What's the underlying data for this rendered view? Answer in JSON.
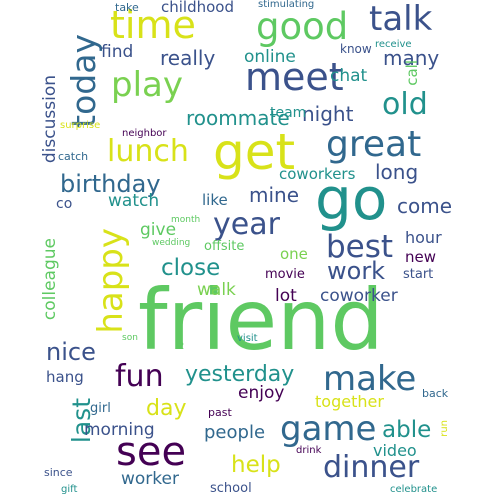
{
  "words": [
    {
      "text": "friend",
      "color": "#5ec962"
    },
    {
      "text": "go",
      "color": "#21918c"
    },
    {
      "text": "get",
      "color": "#d8e219"
    },
    {
      "text": "meet",
      "color": "#3b528b"
    },
    {
      "text": "great",
      "color": "#31688e"
    },
    {
      "text": "time",
      "color": "#d8e219"
    },
    {
      "text": "see",
      "color": "#440154"
    },
    {
      "text": "good",
      "color": "#5ec962"
    },
    {
      "text": "happy",
      "color": "#d8e219"
    },
    {
      "text": "talk",
      "color": "#3b528b"
    },
    {
      "text": "make",
      "color": "#31688e"
    },
    {
      "text": "game",
      "color": "#31688e"
    },
    {
      "text": "play",
      "color": "#7ad151"
    },
    {
      "text": "today",
      "color": "#31688e"
    },
    {
      "text": "lunch",
      "color": "#d8e219"
    },
    {
      "text": "best",
      "color": "#3b528b"
    },
    {
      "text": "old",
      "color": "#21918c"
    },
    {
      "text": "dinner",
      "color": "#3b528b"
    },
    {
      "text": "fun",
      "color": "#440154"
    },
    {
      "text": "year",
      "color": "#3b528b"
    },
    {
      "text": "birthday",
      "color": "#31688e"
    },
    {
      "text": "work",
      "color": "#3b528b"
    },
    {
      "text": "nice",
      "color": "#3b528b"
    },
    {
      "text": "last",
      "color": "#21918c"
    },
    {
      "text": "close",
      "color": "#21918c"
    },
    {
      "text": "help",
      "color": "#d8e219"
    },
    {
      "text": "day",
      "color": "#d8e219"
    },
    {
      "text": "able",
      "color": "#21918c"
    },
    {
      "text": "yesterday",
      "color": "#21918c"
    },
    {
      "text": "roommate",
      "color": "#21918c"
    },
    {
      "text": "really",
      "color": "#3b528b"
    },
    {
      "text": "night",
      "color": "#3b528b"
    },
    {
      "text": "mine",
      "color": "#3b528b"
    },
    {
      "text": "many",
      "color": "#3b528b"
    },
    {
      "text": "long",
      "color": "#3b528b"
    },
    {
      "text": "come",
      "color": "#3b528b"
    },
    {
      "text": "people",
      "color": "#31688e"
    },
    {
      "text": "morning",
      "color": "#3b528b"
    },
    {
      "text": "online",
      "color": "#21918c"
    },
    {
      "text": "watch",
      "color": "#21918c"
    },
    {
      "text": "enjoy",
      "color": "#440154"
    },
    {
      "text": "colleague",
      "color": "#5ec962"
    },
    {
      "text": "discussion",
      "color": "#3b528b"
    },
    {
      "text": "worker",
      "color": "#31688e"
    },
    {
      "text": "coworker",
      "color": "#3b528b"
    },
    {
      "text": "lot",
      "color": "#440154"
    },
    {
      "text": "walk",
      "color": "#7ad151"
    },
    {
      "text": "give",
      "color": "#5ec962"
    },
    {
      "text": "chat",
      "color": "#21918c"
    },
    {
      "text": "find",
      "color": "#3b528b"
    },
    {
      "text": "together",
      "color": "#d8e219"
    },
    {
      "text": "childhood",
      "color": "#3b528b"
    },
    {
      "text": "hang",
      "color": "#3b528b"
    },
    {
      "text": "hour",
      "color": "#3b528b"
    },
    {
      "text": "new",
      "color": "#440154"
    },
    {
      "text": "video",
      "color": "#21918c"
    },
    {
      "text": "one",
      "color": "#7ad151"
    },
    {
      "text": "like",
      "color": "#31688e"
    },
    {
      "text": "coworkers",
      "color": "#21918c"
    },
    {
      "text": "call",
      "color": "#5ec962"
    },
    {
      "text": "team",
      "color": "#21918c"
    },
    {
      "text": "co",
      "color": "#3b528b"
    },
    {
      "text": "movie",
      "color": "#440154"
    },
    {
      "text": "offsite",
      "color": "#5ec962"
    },
    {
      "text": "start",
      "color": "#3b528b"
    },
    {
      "text": "girl",
      "color": "#31688e"
    },
    {
      "text": "school",
      "color": "#3b528b"
    },
    {
      "text": "know",
      "color": "#3b528b"
    },
    {
      "text": "catch",
      "color": "#31688e"
    },
    {
      "text": "take",
      "color": "#31688e"
    },
    {
      "text": "stimulating",
      "color": "#31688e"
    },
    {
      "text": "receive",
      "color": "#21918c"
    },
    {
      "text": "gift",
      "color": "#21918c"
    },
    {
      "text": "since",
      "color": "#3b528b"
    },
    {
      "text": "neighbor",
      "color": "#440154"
    },
    {
      "text": "surprise",
      "color": "#d8e219"
    },
    {
      "text": "month",
      "color": "#5ec962"
    },
    {
      "text": "wedding",
      "color": "#5ec962"
    },
    {
      "text": "son",
      "color": "#5ec962"
    },
    {
      "text": "visit",
      "color": "#21918c"
    },
    {
      "text": "2",
      "color": "#5ec962"
    },
    {
      "text": "back",
      "color": "#31688e"
    },
    {
      "text": "run",
      "color": "#d8e219"
    },
    {
      "text": "past",
      "color": "#440154"
    },
    {
      "text": "drink",
      "color": "#440154"
    },
    {
      "text": "celebrate",
      "color": "#21918c"
    }
  ]
}
